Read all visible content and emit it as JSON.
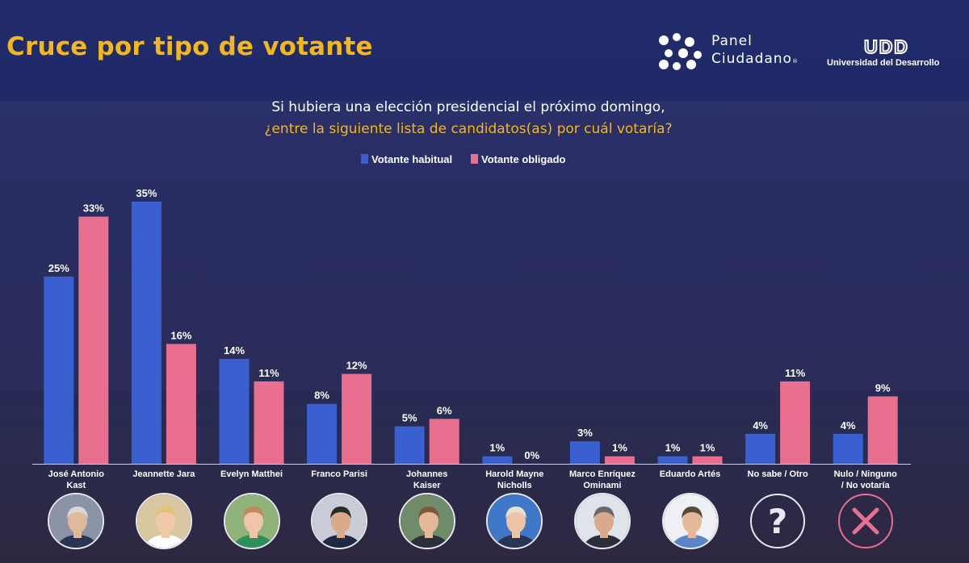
{
  "header": {
    "title": "Cruce por tipo de votante",
    "logo_line1": "Panel",
    "logo_line2": "Ciudadano",
    "logo_reg": "®",
    "udd_mark": "UDD",
    "udd_name": "Universidad del Desarrollo"
  },
  "question": {
    "line1": "Si hubiera una elección presidencial el próximo domingo,",
    "line2": "¿entre la siguiente lista de candidatos(as) por cuál votaría?"
  },
  "colors": {
    "title": "#f3b71e",
    "habitual": "#3a5fd0",
    "obligado": "#e8708e",
    "background": "#1c2459",
    "no_votaria_icon": "#e8708e"
  },
  "chart_data": {
    "type": "bar",
    "title": "",
    "xlabel": "",
    "ylabel": "",
    "ylim": [
      0,
      35
    ],
    "grid": false,
    "legend_position": "top-center",
    "categories": [
      [
        "José Antonio",
        "Kast"
      ],
      [
        "Jeannette Jara"
      ],
      [
        "Evelyn Matthei"
      ],
      [
        "Franco Parisi"
      ],
      [
        "Johannes",
        "Kaiser"
      ],
      [
        "Harold Mayne",
        "Nicholls"
      ],
      [
        "Marco Enríquez",
        "Ominami"
      ],
      [
        "Eduardo Artés"
      ],
      [
        "No sabe / Otro"
      ],
      [
        "Nulo / Ninguno",
        "/ No votaría"
      ]
    ],
    "series": [
      {
        "name": "Votante habitual",
        "color": "#3a5fd0",
        "values": [
          25,
          35,
          14,
          8,
          5,
          1,
          3,
          1,
          4,
          4
        ],
        "labels": [
          "25%",
          "35%",
          "14%",
          "8%",
          "5%",
          "1%",
          "3%",
          "1%",
          "4%",
          "4%"
        ]
      },
      {
        "name": "Votante obligado",
        "color": "#e8708e",
        "values": [
          33,
          16,
          11,
          12,
          6,
          0,
          1,
          1,
          11,
          9
        ],
        "labels": [
          "33%",
          "16%",
          "11%",
          "12%",
          "6%",
          "0%",
          "1%",
          "1%",
          "11%",
          "9%"
        ]
      }
    ]
  },
  "avatars": [
    {
      "kind": "photo",
      "icon": "person-photo-icon",
      "bg": "#8a94a6",
      "suit": "#2a3556",
      "skin": "#e0b89a",
      "hair": "#d8d8d8"
    },
    {
      "kind": "photo",
      "icon": "person-photo-icon",
      "bg": "#d8c7a0",
      "suit": "#ffffff",
      "skin": "#f0c9a8",
      "hair": "#e2c27a"
    },
    {
      "kind": "photo",
      "icon": "person-photo-icon",
      "bg": "#8fb37a",
      "suit": "#2f8f5a",
      "skin": "#f0c4a8",
      "hair": "#c08a5a"
    },
    {
      "kind": "photo",
      "icon": "person-photo-icon",
      "bg": "#c9ccd6",
      "suit": "#1e2a44",
      "skin": "#d9a98a",
      "hair": "#2a2a2a"
    },
    {
      "kind": "photo",
      "icon": "person-photo-icon",
      "bg": "#6f8c6a",
      "suit": "#2a2f3a",
      "skin": "#e6b89a",
      "hair": "#7a5a3a"
    },
    {
      "kind": "photo",
      "icon": "person-photo-icon",
      "bg": "#3f78c8",
      "suit": "#2a3556",
      "skin": "#eec4a8",
      "hair": "#e8e0d0"
    },
    {
      "kind": "photo",
      "icon": "person-photo-icon",
      "bg": "#dfe3ea",
      "suit": "#2a2f3a",
      "skin": "#d9a98a",
      "hair": "#6a6a6a"
    },
    {
      "kind": "photo",
      "icon": "person-photo-icon",
      "bg": "#eef0f4",
      "suit": "#5a86c8",
      "skin": "#e6b89a",
      "hair": "#5a4a3a"
    },
    {
      "kind": "icon",
      "icon": "question-mark-icon",
      "symbol": "?",
      "ring": "#e8e8ee"
    },
    {
      "kind": "icon",
      "icon": "cross-icon",
      "symbol": "×",
      "ring": "#e8708e"
    }
  ]
}
